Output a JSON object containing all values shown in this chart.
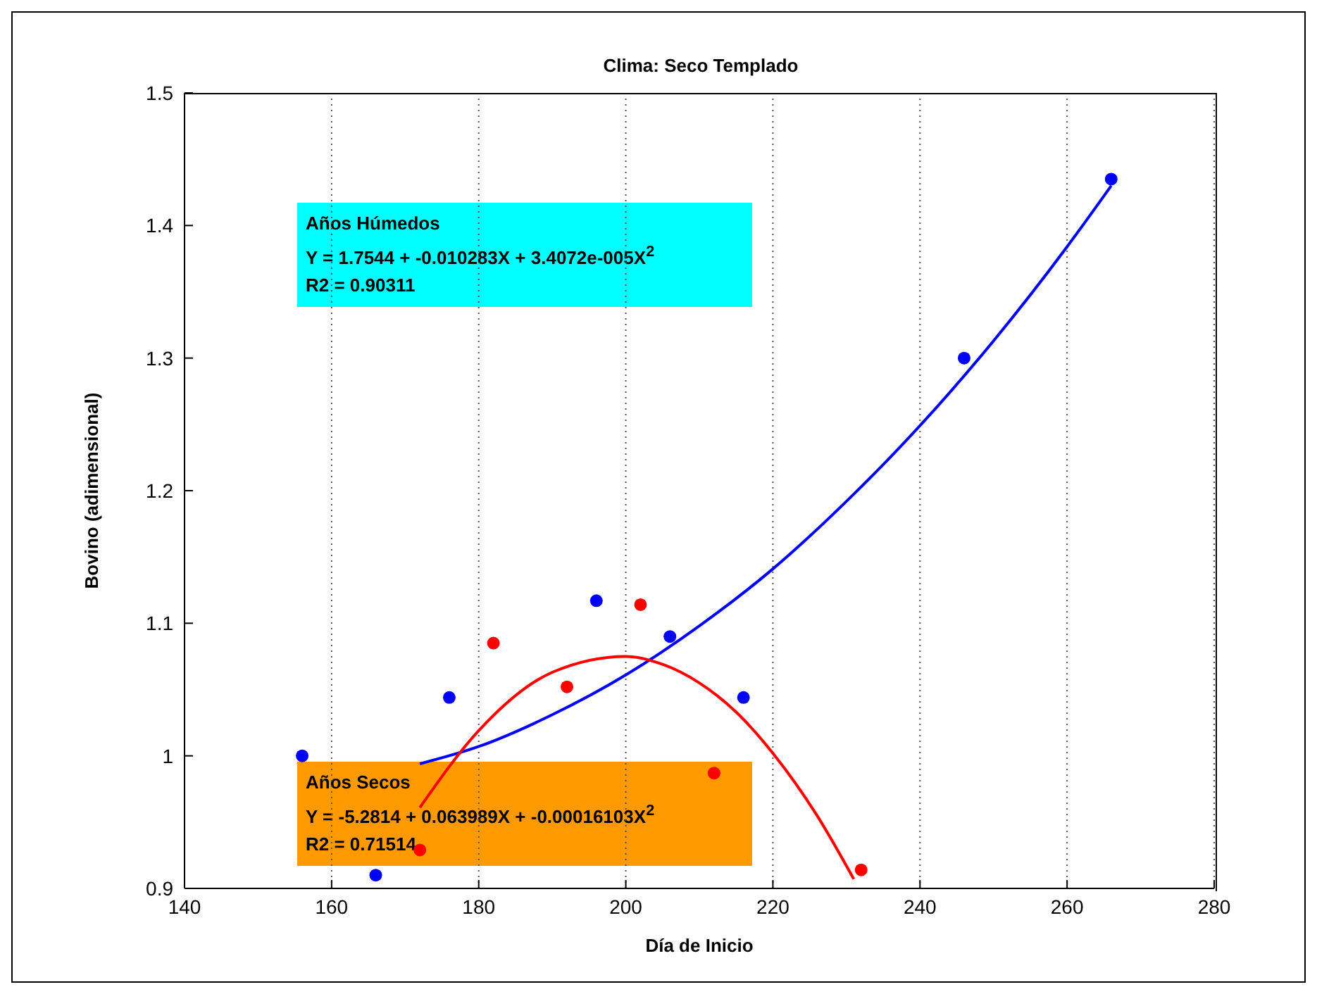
{
  "chart_data": {
    "type": "scatter",
    "title": "Clima: Seco Templado",
    "xlabel": "Día de Inicio",
    "ylabel": "Bovino (adimensional)",
    "xlim": [
      140,
      280
    ],
    "xticks": [
      140,
      160,
      180,
      200,
      220,
      240,
      260,
      280
    ],
    "ylim": [
      0.9,
      1.5
    ],
    "yticks": [
      0.9,
      1,
      1.1,
      1.2,
      1.3,
      1.4,
      1.5
    ],
    "grid": "x",
    "marker": "circle",
    "series": [
      {
        "color": "#0000ff",
        "x": [
          156,
          166,
          176,
          196,
          206,
          216,
          246,
          266
        ],
        "values": [
          1.0,
          0.91,
          1.044,
          1.117,
          1.09,
          1.044,
          1.3,
          1.435
        ]
      },
      {
        "color": "#ff0000",
        "x": [
          172,
          182,
          192,
          202,
          212,
          232
        ],
        "values": [
          0.929,
          1.085,
          1.052,
          1.114,
          0.987,
          0.914
        ]
      },
      {
        "type": "line",
        "color": "#0000ff",
        "marker": "none",
        "x": [
          172,
          180,
          190,
          200,
          210,
          220,
          230,
          240,
          250,
          260,
          266
        ],
        "values": [
          0.994,
          1.007,
          1.031,
          1.061,
          1.098,
          1.141,
          1.192,
          1.249,
          1.313,
          1.384,
          1.43
        ]
      },
      {
        "type": "line",
        "color": "#ff0000",
        "marker": "none",
        "x": [
          172,
          180,
          190,
          200,
          205,
          210,
          215,
          220,
          226,
          231
        ],
        "values": [
          0.961,
          1.019,
          1.063,
          1.075,
          1.069,
          1.055,
          1.033,
          1.002,
          0.955,
          0.907
        ]
      }
    ],
    "annotations": [
      "Años Húmedos\nY = 1.7544 + -0.010283X + 3.4072e-005X$^{2}$\nR2 = 0.90311",
      "Años Secos\nY = -5.2814 + 0.063989X + -0.00016103X$^{2}$\nR2 = 0.71514"
    ]
  }
}
